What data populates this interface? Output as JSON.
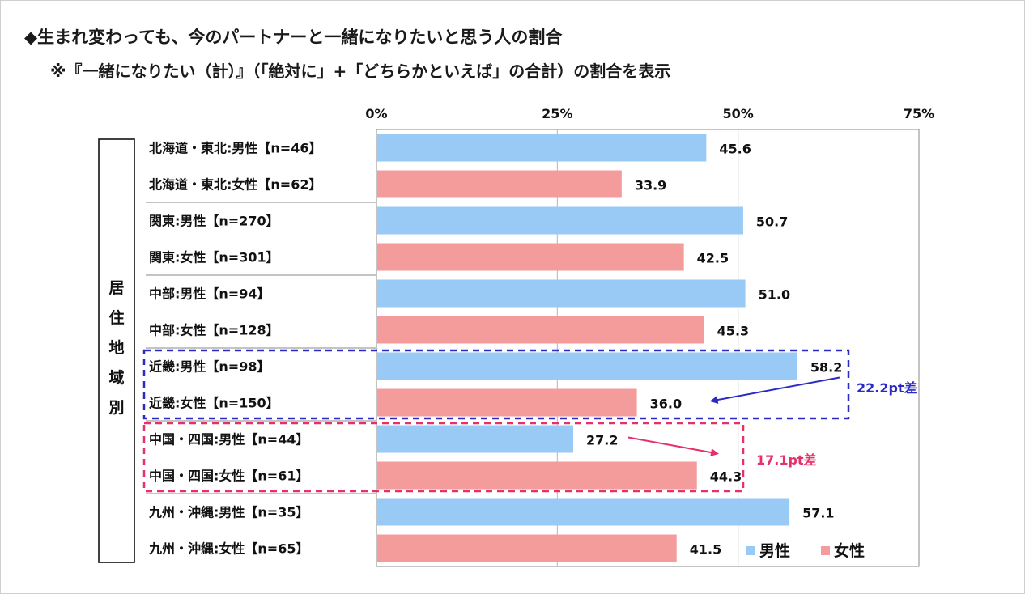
{
  "title": "◆生まれ変わっても、今のパートナーと一緒になりたいと思う人の割合",
  "subtitle": "※『一緒になりたい（計）』（「絶対に」+「どちらかといえば」の合計）の割合を表示",
  "colors": {
    "male": "#99c9f5",
    "female": "#f49c9c",
    "blue_box": "#2b2bc4",
    "pink_box": "#e6306a"
  },
  "chart_data": {
    "type": "bar",
    "orientation": "horizontal",
    "group_label": "居住地域別",
    "xlim": [
      0,
      75
    ],
    "x_ticks": [
      "0%",
      "25%",
      "50%",
      "75%"
    ],
    "x_tick_values": [
      0,
      25,
      50,
      75
    ],
    "grid": true,
    "legend": {
      "position": "bottom-right",
      "items": [
        {
          "label": "男性",
          "key": "male"
        },
        {
          "label": "女性",
          "key": "female"
        }
      ]
    },
    "categories": [
      "北海道・東北:男性【n=46】",
      "北海道・東北:女性【n=62】",
      "関東:男性【n=270】",
      "関東:女性【n=301】",
      "中部:男性【n=94】",
      "中部:女性【n=128】",
      "近畿:男性【n=98】",
      "近畿:女性【n=150】",
      "中国・四国:男性【n=44】",
      "中国・四国:女性【n=61】",
      "九州・沖縄:男性【n=35】",
      "九州・沖縄:女性【n=65】"
    ],
    "genders": [
      "male",
      "female",
      "male",
      "female",
      "male",
      "female",
      "male",
      "female",
      "male",
      "female",
      "male",
      "female"
    ],
    "values": [
      45.6,
      33.9,
      50.7,
      42.5,
      51.0,
      45.3,
      58.2,
      36.0,
      27.2,
      44.3,
      57.1,
      41.5
    ],
    "value_labels": [
      "45.6",
      "33.9",
      "50.7",
      "42.5",
      "51.0",
      "45.3",
      "58.2",
      "36.0",
      "27.2",
      "44.3",
      "57.1",
      "41.5"
    ],
    "annotations": [
      {
        "text": "22.2pt差",
        "rows": [
          6,
          7
        ],
        "color": "blue_box",
        "arrow_to": "female"
      },
      {
        "text": "17.1pt差",
        "rows": [
          8,
          9
        ],
        "color": "pink_box",
        "arrow_to": "female"
      }
    ]
  }
}
